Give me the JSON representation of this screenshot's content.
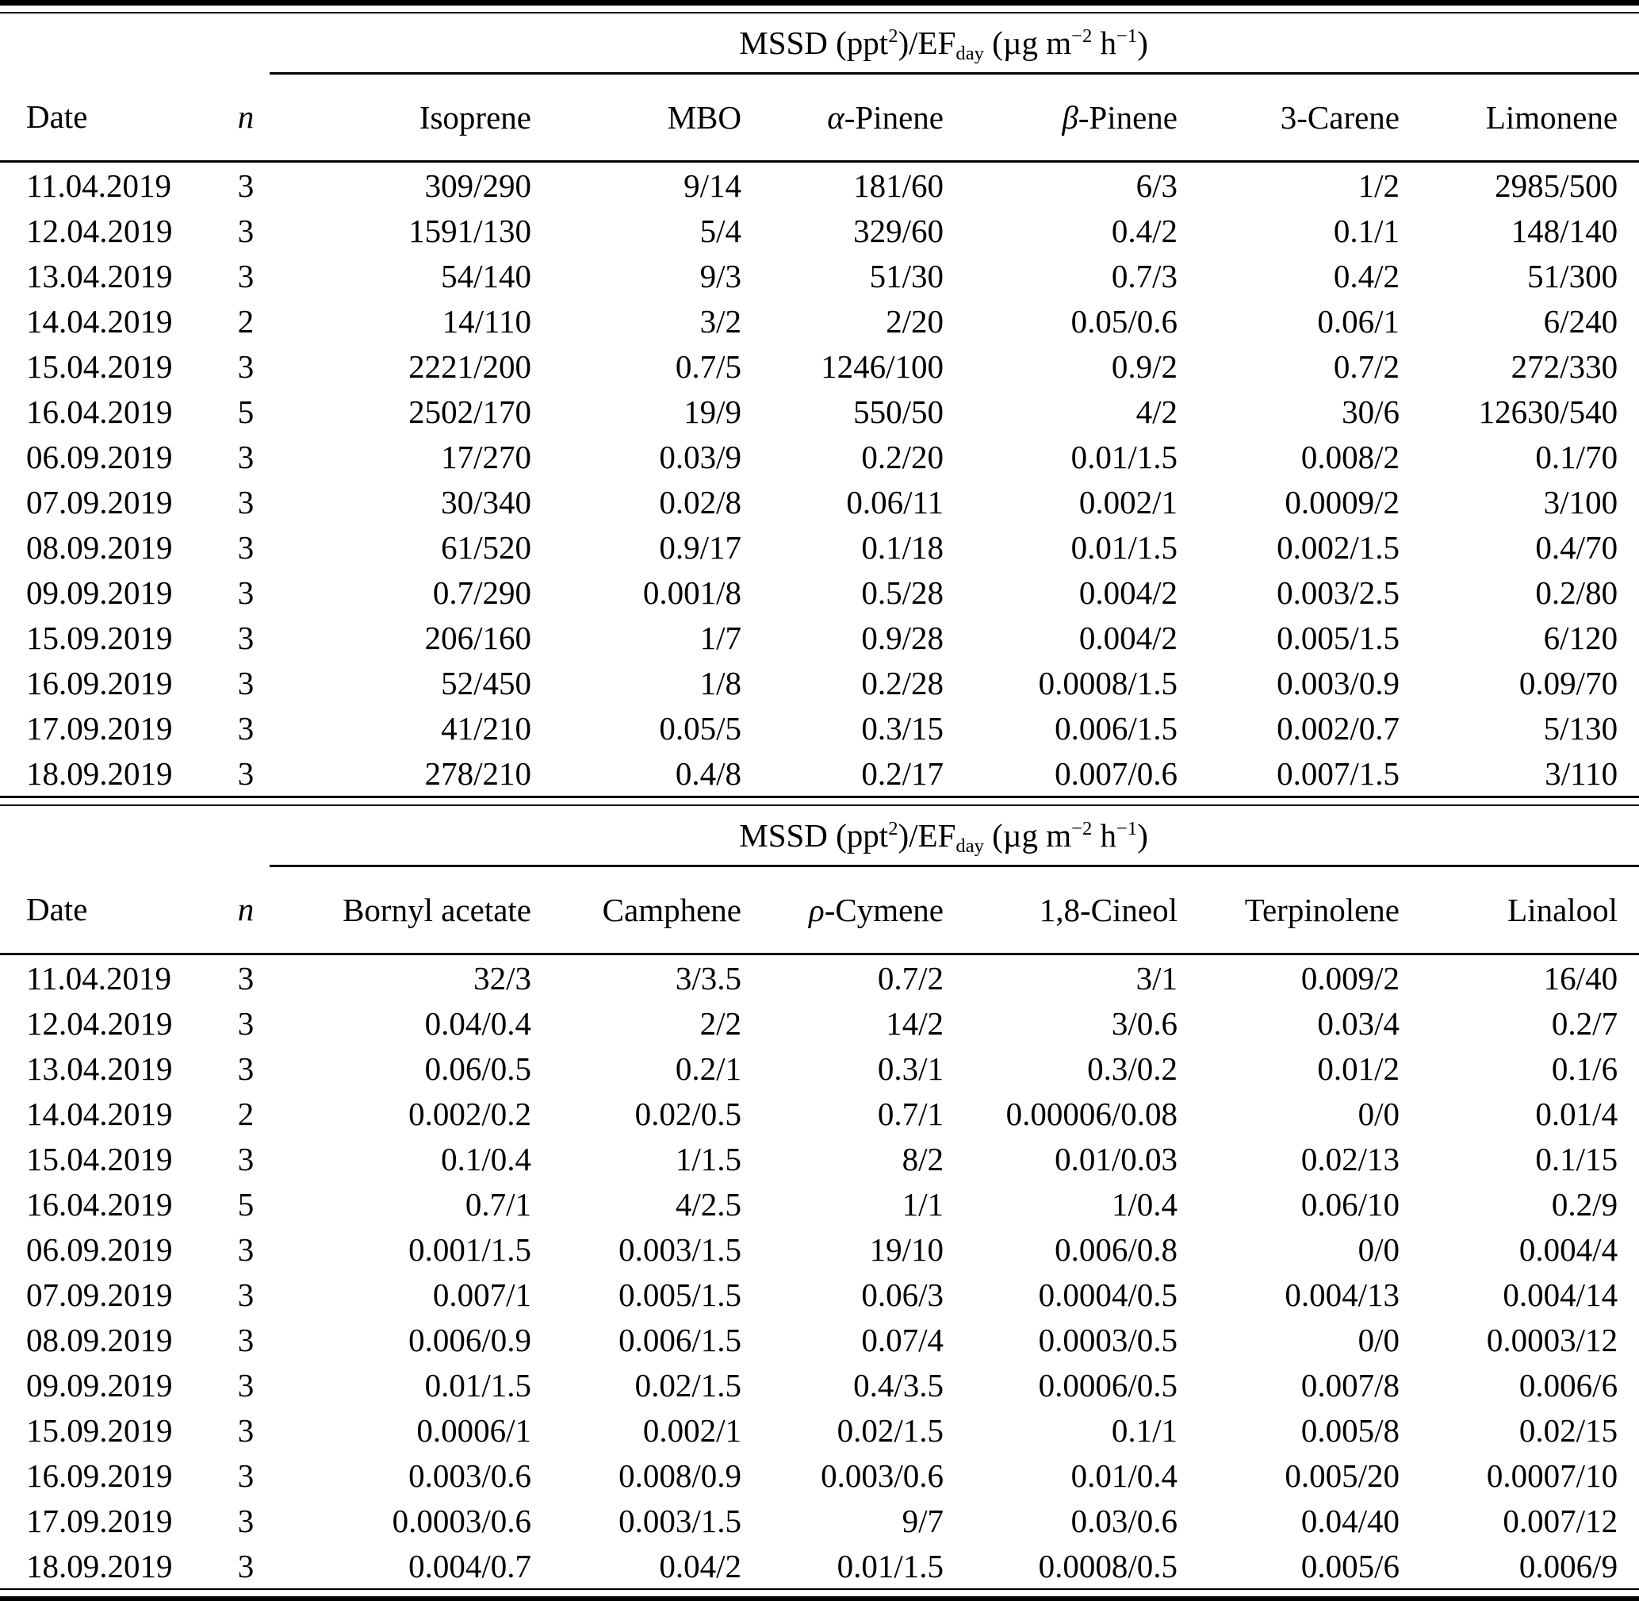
{
  "unit_header": {
    "parts": [
      {
        "t": "MSSD (ppt",
        "style": "normal"
      },
      {
        "t": "2",
        "style": "sup"
      },
      {
        "t": ")/EF",
        "style": "normal"
      },
      {
        "t": "day",
        "style": "sub"
      },
      {
        "t": " (µg m",
        "style": "normal"
      },
      {
        "t": "−2",
        "style": "sup"
      },
      {
        "t": " h",
        "style": "normal"
      },
      {
        "t": "−1",
        "style": "sup"
      },
      {
        "t": ")",
        "style": "normal"
      }
    ]
  },
  "table1": {
    "columns": [
      {
        "italic": "",
        "text": "Date"
      },
      {
        "italic": "n",
        "text": ""
      },
      {
        "italic": "",
        "text": "Isoprene"
      },
      {
        "italic": "",
        "text": "MBO"
      },
      {
        "italic": "α",
        "text": "-Pinene"
      },
      {
        "italic": "β",
        "text": "-Pinene"
      },
      {
        "italic": "",
        "text": "3-Carene"
      },
      {
        "italic": "",
        "text": "Limonene"
      }
    ],
    "rows": [
      [
        "11.04.2019",
        "3",
        "309/290",
        "9/14",
        "181/60",
        "6/3",
        "1/2",
        "2985/500"
      ],
      [
        "12.04.2019",
        "3",
        "1591/130",
        "5/4",
        "329/60",
        "0.4/2",
        "0.1/1",
        "148/140"
      ],
      [
        "13.04.2019",
        "3",
        "54/140",
        "9/3",
        "51/30",
        "0.7/3",
        "0.4/2",
        "51/300"
      ],
      [
        "14.04.2019",
        "2",
        "14/110",
        "3/2",
        "2/20",
        "0.05/0.6",
        "0.06/1",
        "6/240"
      ],
      [
        "15.04.2019",
        "3",
        "2221/200",
        "0.7/5",
        "1246/100",
        "0.9/2",
        "0.7/2",
        "272/330"
      ],
      [
        "16.04.2019",
        "5",
        "2502/170",
        "19/9",
        "550/50",
        "4/2",
        "30/6",
        "12630/540"
      ],
      [
        "06.09.2019",
        "3",
        "17/270",
        "0.03/9",
        "0.2/20",
        "0.01/1.5",
        "0.008/2",
        "0.1/70"
      ],
      [
        "07.09.2019",
        "3",
        "30/340",
        "0.02/8",
        "0.06/11",
        "0.002/1",
        "0.0009/2",
        "3/100"
      ],
      [
        "08.09.2019",
        "3",
        "61/520",
        "0.9/17",
        "0.1/18",
        "0.01/1.5",
        "0.002/1.5",
        "0.4/70"
      ],
      [
        "09.09.2019",
        "3",
        "0.7/290",
        "0.001/8",
        "0.5/28",
        "0.004/2",
        "0.003/2.5",
        "0.2/80"
      ],
      [
        "15.09.2019",
        "3",
        "206/160",
        "1/7",
        "0.9/28",
        "0.004/2",
        "0.005/1.5",
        "6/120"
      ],
      [
        "16.09.2019",
        "3",
        "52/450",
        "1/8",
        "0.2/28",
        "0.0008/1.5",
        "0.003/0.9",
        "0.09/70"
      ],
      [
        "17.09.2019",
        "3",
        "41/210",
        "0.05/5",
        "0.3/15",
        "0.006/1.5",
        "0.002/0.7",
        "5/130"
      ],
      [
        "18.09.2019",
        "3",
        "278/210",
        "0.4/8",
        "0.2/17",
        "0.007/0.6",
        "0.007/1.5",
        "3/110"
      ]
    ]
  },
  "table2": {
    "columns": [
      {
        "italic": "",
        "text": "Date"
      },
      {
        "italic": "n",
        "text": ""
      },
      {
        "italic": "",
        "text": "Bornyl acetate"
      },
      {
        "italic": "",
        "text": "Camphene"
      },
      {
        "italic": "ρ",
        "text": "-Cymene"
      },
      {
        "italic": "",
        "text": "1,8-Cineol"
      },
      {
        "italic": "",
        "text": "Terpinolene"
      },
      {
        "italic": "",
        "text": "Linalool"
      }
    ],
    "rows": [
      [
        "11.04.2019",
        "3",
        "32/3",
        "3/3.5",
        "0.7/2",
        "3/1",
        "0.009/2",
        "16/40"
      ],
      [
        "12.04.2019",
        "3",
        "0.04/0.4",
        "2/2",
        "14/2",
        "3/0.6",
        "0.03/4",
        "0.2/7"
      ],
      [
        "13.04.2019",
        "3",
        "0.06/0.5",
        "0.2/1",
        "0.3/1",
        "0.3/0.2",
        "0.01/2",
        "0.1/6"
      ],
      [
        "14.04.2019",
        "2",
        "0.002/0.2",
        "0.02/0.5",
        "0.7/1",
        "0.00006/0.08",
        "0/0",
        "0.01/4"
      ],
      [
        "15.04.2019",
        "3",
        "0.1/0.4",
        "1/1.5",
        "8/2",
        "0.01/0.03",
        "0.02/13",
        "0.1/15"
      ],
      [
        "16.04.2019",
        "5",
        "0.7/1",
        "4/2.5",
        "1/1",
        "1/0.4",
        "0.06/10",
        "0.2/9"
      ],
      [
        "06.09.2019",
        "3",
        "0.001/1.5",
        "0.003/1.5",
        "19/10",
        "0.006/0.8",
        "0/0",
        "0.004/4"
      ],
      [
        "07.09.2019",
        "3",
        "0.007/1",
        "0.005/1.5",
        "0.06/3",
        "0.0004/0.5",
        "0.004/13",
        "0.004/14"
      ],
      [
        "08.09.2019",
        "3",
        "0.006/0.9",
        "0.006/1.5",
        "0.07/4",
        "0.0003/0.5",
        "0/0",
        "0.0003/12"
      ],
      [
        "09.09.2019",
        "3",
        "0.01/1.5",
        "0.02/1.5",
        "0.4/3.5",
        "0.0006/0.5",
        "0.007/8",
        "0.006/6"
      ],
      [
        "15.09.2019",
        "3",
        "0.0006/1",
        "0.002/1",
        "0.02/1.5",
        "0.1/1",
        "0.005/8",
        "0.02/15"
      ],
      [
        "16.09.2019",
        "3",
        "0.003/0.6",
        "0.008/0.9",
        "0.003/0.6",
        "0.01/0.4",
        "0.005/20",
        "0.0007/10"
      ],
      [
        "17.09.2019",
        "3",
        "0.0003/0.6",
        "0.003/1.5",
        "9/7",
        "0.03/0.6",
        "0.04/40",
        "0.007/12"
      ],
      [
        "18.09.2019",
        "3",
        "0.004/0.7",
        "0.04/2",
        "0.01/1.5",
        "0.0008/0.5",
        "0.005/6",
        "0.006/9"
      ]
    ]
  }
}
